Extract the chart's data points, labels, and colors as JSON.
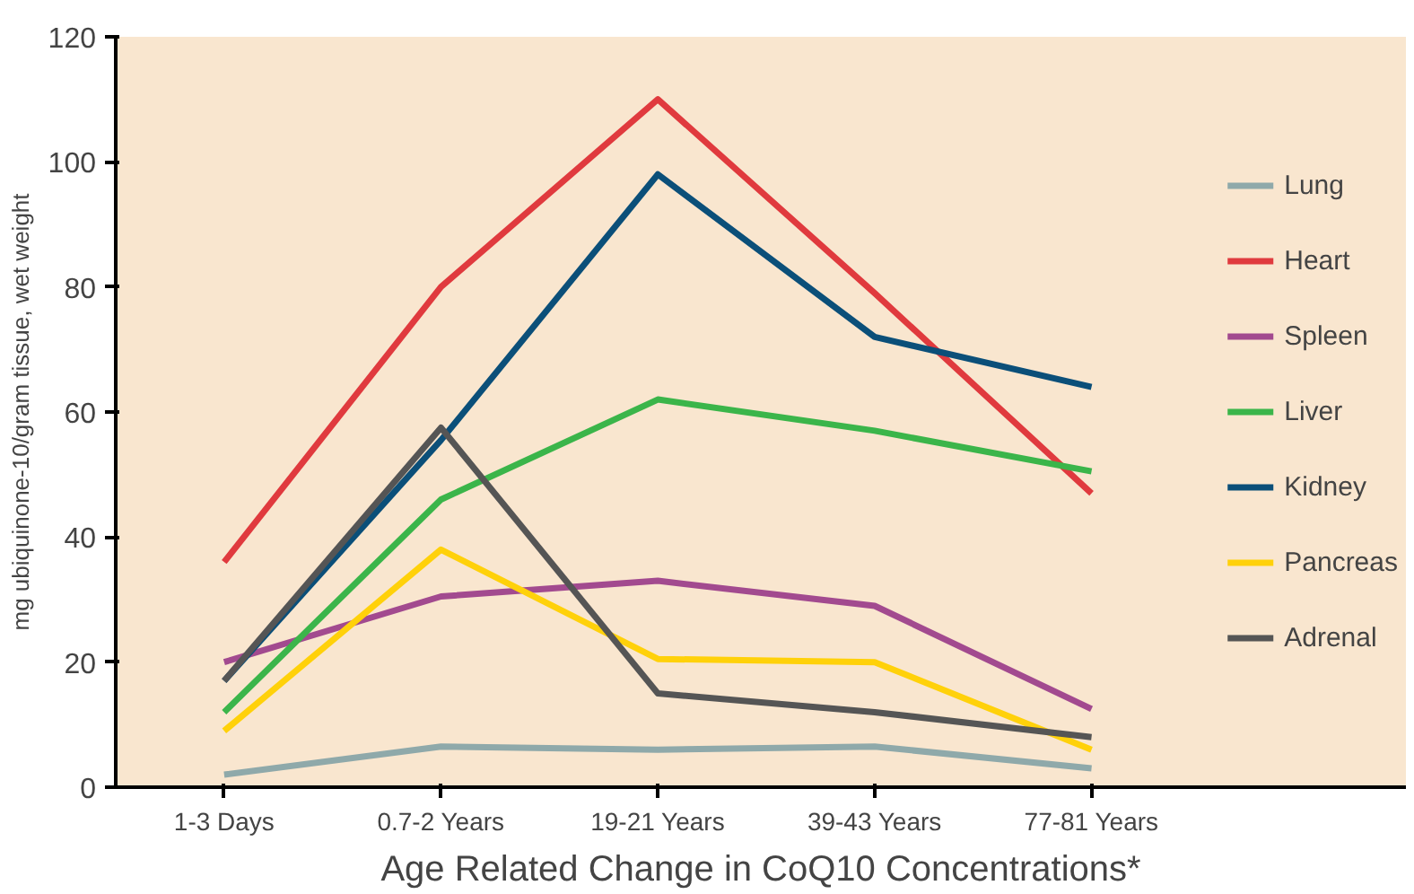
{
  "chart_data": {
    "type": "line",
    "xlabel": "Age Related Change in CoQ10 Concentrations*",
    "ylabel": "mg ubiquinone-10/gram tissue, wet weight",
    "categories": [
      "1-3 Days",
      "0.7-2 Years",
      "19-21 Years",
      "39-43 Years",
      "77-81 Years"
    ],
    "ylim": [
      0,
      120
    ],
    "yticks": [
      0,
      20,
      40,
      60,
      80,
      100,
      120
    ],
    "grid": false,
    "legend": "right",
    "marker": "none",
    "line_style": "solid",
    "series": [
      {
        "name": "Lung",
        "color": "#8fa9aa",
        "values": [
          2,
          6.5,
          6,
          6.5,
          3
        ]
      },
      {
        "name": "Heart",
        "color": "#e03a3e",
        "values": [
          36,
          80,
          110,
          79,
          47
        ]
      },
      {
        "name": "Spleen",
        "color": "#a24a8f",
        "values": [
          20,
          30.5,
          33,
          29,
          12.5
        ]
      },
      {
        "name": "Liver",
        "color": "#3bb54a",
        "values": [
          12,
          46,
          62,
          57,
          50.5
        ]
      },
      {
        "name": "Kidney",
        "color": "#0b4f79",
        "values": [
          17,
          55.5,
          98,
          72,
          64
        ]
      },
      {
        "name": "Pancreas",
        "color": "#ffd10a",
        "values": [
          9,
          38,
          20.5,
          20,
          6
        ]
      },
      {
        "name": "Adrenal",
        "color": "#555555",
        "values": [
          17,
          57.5,
          15,
          12,
          8
        ]
      }
    ]
  }
}
